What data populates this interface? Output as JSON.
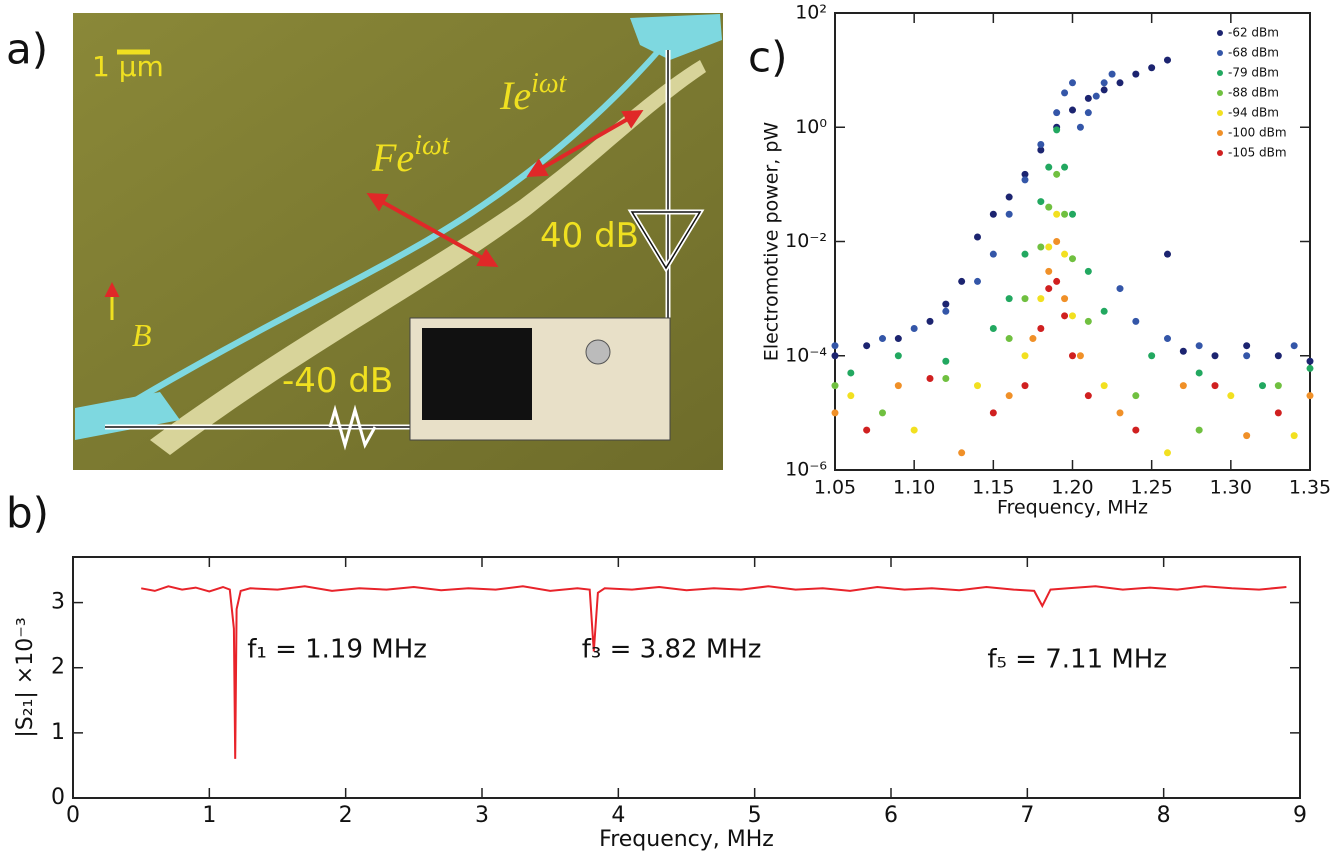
{
  "image_panel": {
    "panel_label": "a)",
    "scale_bar": "1 µm",
    "annotations": [
      {
        "base": "Ie",
        "sup": "iωt"
      },
      {
        "base": "Fe",
        "sup": "iωt"
      },
      {
        "base": "40 dB"
      },
      {
        "base": "-40 dB"
      },
      {
        "base": "B"
      }
    ]
  },
  "chart_data": [
    {
      "type": "line",
      "panel_label": "b)",
      "x_label": "Frequency, MHz",
      "y_label": "|S₂₁| ×10⁻³",
      "color": "#e8232a",
      "xlim": [
        0,
        9
      ],
      "xticks": [
        0,
        1,
        2,
        3,
        4,
        5,
        6,
        7,
        8,
        9
      ],
      "ylim": [
        0,
        3.7
      ],
      "yticks": [
        0,
        1,
        2,
        3
      ],
      "x": [
        0.5,
        0.6,
        0.7,
        0.8,
        0.9,
        1.0,
        1.1,
        1.15,
        1.18,
        1.19,
        1.2,
        1.23,
        1.3,
        1.5,
        1.7,
        1.9,
        2.1,
        2.3,
        2.5,
        2.7,
        2.9,
        3.1,
        3.3,
        3.5,
        3.7,
        3.79,
        3.82,
        3.85,
        3.9,
        4.1,
        4.3,
        4.5,
        4.7,
        4.9,
        5.1,
        5.3,
        5.5,
        5.7,
        5.9,
        6.1,
        6.3,
        6.5,
        6.7,
        6.9,
        7.05,
        7.11,
        7.17,
        7.3,
        7.5,
        7.7,
        7.9,
        8.1,
        8.3,
        8.5,
        8.7,
        8.9
      ],
      "values": [
        3.22,
        3.18,
        3.25,
        3.2,
        3.23,
        3.17,
        3.24,
        3.2,
        2.6,
        0.6,
        2.9,
        3.18,
        3.22,
        3.2,
        3.25,
        3.18,
        3.22,
        3.2,
        3.24,
        3.19,
        3.22,
        3.2,
        3.25,
        3.18,
        3.22,
        3.2,
        2.25,
        3.15,
        3.22,
        3.2,
        3.24,
        3.19,
        3.22,
        3.2,
        3.25,
        3.2,
        3.22,
        3.18,
        3.24,
        3.2,
        3.22,
        3.19,
        3.24,
        3.2,
        3.18,
        2.95,
        3.2,
        3.22,
        3.25,
        3.2,
        3.23,
        3.2,
        3.25,
        3.22,
        3.2,
        3.24
      ],
      "annotations": [
        "f₁ = 1.19 MHz",
        "f₃ = 3.82 MHz",
        "f₅ = 7.11 MHz"
      ]
    },
    {
      "type": "scatter",
      "panel_label": "c)",
      "x_label": "Frequency, MHz",
      "y_label": "Electromotive power, pW",
      "log_y": true,
      "legend": "upper right",
      "xlim": [
        1.05,
        1.35
      ],
      "xticks": [
        1.05,
        {
          "value": 1.1,
          "label": "1.10"
        },
        1.15,
        {
          "value": 1.2,
          "label": "1.20"
        },
        1.25,
        {
          "value": 1.3,
          "label": "1.30"
        },
        1.35
      ],
      "ylim": [
        1e-06,
        100
      ],
      "yticks": [
        {
          "value": 1e-06,
          "label": "10⁻⁶"
        },
        {
          "value": 0.0001,
          "label": "10⁻⁴"
        },
        {
          "value": 0.01,
          "label": "10⁻²"
        },
        {
          "value": 1,
          "label": "10⁰"
        },
        {
          "value": 100,
          "label": "10²"
        }
      ],
      "series": [
        {
          "name": "-62 dBm",
          "color": "#1c2470",
          "x": [
            1.05,
            1.07,
            1.09,
            1.11,
            1.12,
            1.13,
            1.14,
            1.15,
            1.16,
            1.17,
            1.18,
            1.19,
            1.2,
            1.21,
            1.22,
            1.23,
            1.24,
            1.25,
            1.26,
            1.26,
            1.27,
            1.29,
            1.31,
            1.33,
            1.35
          ],
          "values": [
            0.0001,
            0.00015,
            0.0002,
            0.0004,
            0.0008,
            0.002,
            0.012,
            0.03,
            0.06,
            0.15,
            0.4,
            1.0,
            2.0,
            3.2,
            4.5,
            6,
            8.5,
            11,
            15,
            0.006,
            0.00012,
            0.0001,
            0.00015,
            0.0001,
            8e-05
          ]
        },
        {
          "name": "-68 dBm",
          "color": "#3456a8",
          "x": [
            1.05,
            1.08,
            1.1,
            1.12,
            1.14,
            1.15,
            1.16,
            1.17,
            1.18,
            1.19,
            1.195,
            1.2,
            1.205,
            1.21,
            1.215,
            1.22,
            1.225,
            1.23,
            1.24,
            1.26,
            1.28,
            1.31,
            1.34
          ],
          "values": [
            0.00015,
            0.0002,
            0.0003,
            0.0006,
            0.002,
            0.006,
            0.03,
            0.12,
            0.5,
            1.8,
            4,
            6,
            1,
            1.8,
            3.5,
            6,
            8.5,
            0.0015,
            0.0004,
            0.0002,
            0.00015,
            0.0001,
            0.00015
          ]
        },
        {
          "name": "-79 dBm",
          "color": "#22a860",
          "x": [
            1.06,
            1.09,
            1.12,
            1.15,
            1.16,
            1.17,
            1.18,
            1.185,
            1.19,
            1.195,
            1.2,
            1.21,
            1.22,
            1.25,
            1.28,
            1.32,
            1.35
          ],
          "values": [
            5e-05,
            0.0001,
            8e-05,
            0.0003,
            0.001,
            0.006,
            0.05,
            0.2,
            0.9,
            0.2,
            0.03,
            0.003,
            0.0006,
            0.0001,
            5e-05,
            3e-05,
            6e-05
          ]
        },
        {
          "name": "-88 dBm",
          "color": "#70c040",
          "x": [
            1.05,
            1.08,
            1.12,
            1.16,
            1.17,
            1.18,
            1.185,
            1.19,
            1.195,
            1.2,
            1.21,
            1.24,
            1.28,
            1.33
          ],
          "values": [
            3e-05,
            1e-05,
            4e-05,
            0.0002,
            0.001,
            0.008,
            0.04,
            0.15,
            0.03,
            0.005,
            0.0004,
            2e-05,
            5e-06,
            3e-05
          ]
        },
        {
          "name": "-94 dBm",
          "color": "#f2e020",
          "x": [
            1.06,
            1.1,
            1.14,
            1.17,
            1.18,
            1.185,
            1.19,
            1.195,
            1.2,
            1.22,
            1.26,
            1.3,
            1.34
          ],
          "values": [
            2e-05,
            5e-06,
            3e-05,
            0.0001,
            0.001,
            0.008,
            0.03,
            0.006,
            0.0005,
            3e-05,
            2e-06,
            2e-05,
            4e-06
          ]
        },
        {
          "name": "-100 dBm",
          "color": "#f09028",
          "x": [
            1.05,
            1.09,
            1.13,
            1.16,
            1.175,
            1.185,
            1.19,
            1.195,
            1.205,
            1.23,
            1.27,
            1.31,
            1.35
          ],
          "values": [
            1e-05,
            3e-05,
            2e-06,
            2e-05,
            0.0002,
            0.003,
            0.01,
            0.001,
            0.0001,
            1e-05,
            3e-05,
            4e-06,
            2e-05
          ]
        },
        {
          "name": "-105 dBm",
          "color": "#d02020",
          "x": [
            1.07,
            1.11,
            1.15,
            1.17,
            1.18,
            1.185,
            1.19,
            1.195,
            1.2,
            1.21,
            1.24,
            1.29,
            1.33
          ],
          "values": [
            5e-06,
            4e-05,
            1e-05,
            3e-05,
            0.0003,
            0.0015,
            0.002,
            0.0005,
            0.0001,
            2e-05,
            5e-06,
            3e-05,
            1e-05
          ]
        }
      ]
    }
  ]
}
